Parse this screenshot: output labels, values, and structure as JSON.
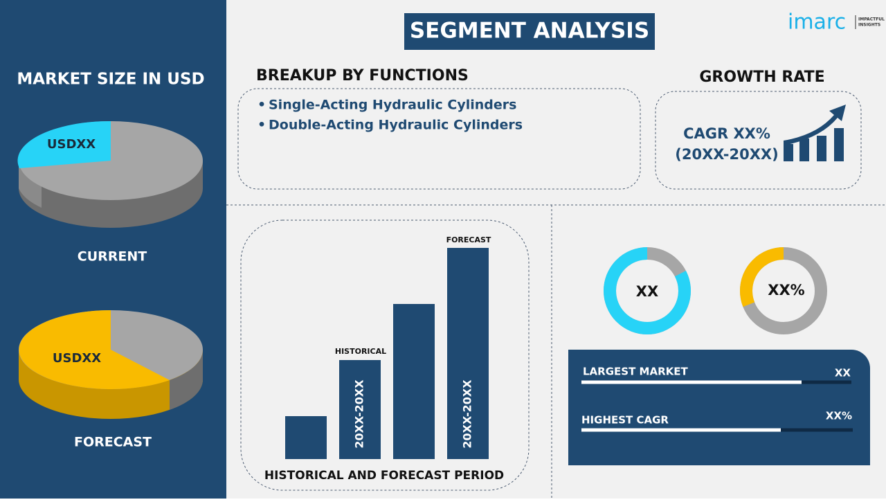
{
  "header": {
    "title": "SEGMENT ANALYSIS",
    "logo": "imarc",
    "logo_tagline_1": "IMPACTFUL",
    "logo_tagline_2": "INSIGHTS"
  },
  "market_size": {
    "title": "MARKET SIZE IN USD",
    "current_value": "USDXX",
    "current_label": "CURRENT",
    "forecast_value": "USDXX",
    "forecast_label": "FORECAST"
  },
  "breakup": {
    "title": "BREAKUP BY FUNCTIONS",
    "items": [
      "Single-Acting Hydraulic Cylinders",
      "Double-Acting Hydraulic Cylinders"
    ]
  },
  "growth": {
    "title": "GROWTH RATE",
    "cagr": "CAGR XX%",
    "period": "(20XX-20XX)"
  },
  "period_chart": {
    "forecast_label": "FORECAST",
    "historical_label": "HISTORICAL",
    "historical_period": "20XX-20XX",
    "forecast_period": "20XX-20XX",
    "caption": "HISTORICAL AND FORECAST PERIOD"
  },
  "donuts": {
    "first": "XX",
    "second": "XX%"
  },
  "stats": {
    "largest_market_label": "LARGEST MARKET",
    "largest_market_value": "XX",
    "highest_cagr_label": "HIGHEST CAGR",
    "highest_cagr_value": "XX%"
  }
}
